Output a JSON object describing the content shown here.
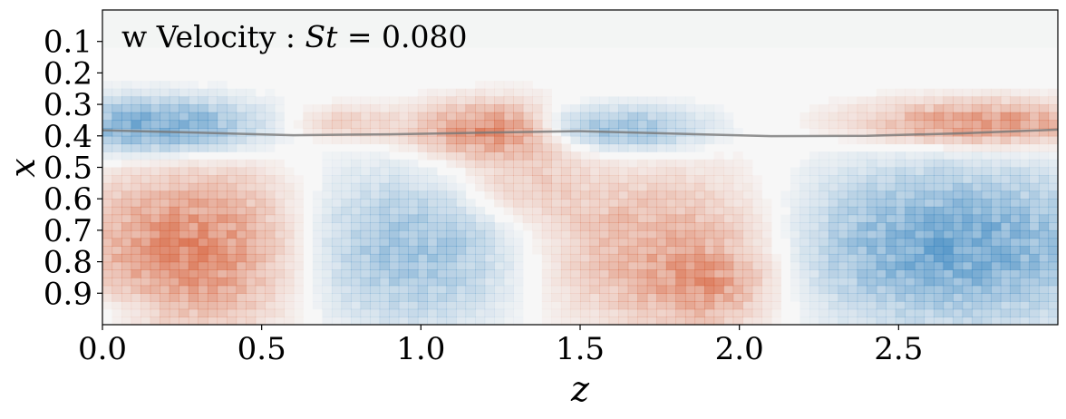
{
  "chart_data": {
    "type": "heatmap",
    "title_prefix": "w Velocity : ",
    "title_math_var": "St",
    "title_equals": " = ",
    "title_value": "0.080",
    "xlabel": "z",
    "ylabel": "x",
    "xlim": [
      0.0,
      3.0
    ],
    "ylim": [
      0.0,
      1.0
    ],
    "y_inverted": true,
    "x_ticks": [
      0.0,
      0.5,
      1.0,
      1.5,
      2.0,
      2.5
    ],
    "x_tick_labels": [
      "0.0",
      "0.5",
      "1.0",
      "1.5",
      "2.0",
      "2.5"
    ],
    "y_ticks": [
      0.1,
      0.2,
      0.3,
      0.4,
      0.5,
      0.6,
      0.7,
      0.8,
      0.9
    ],
    "y_tick_labels": [
      "0.1",
      "0.2",
      "0.3",
      "0.4",
      "0.5",
      "0.6",
      "0.7",
      "0.8",
      "0.9"
    ],
    "colormap": "RdBu_r",
    "colors": {
      "positive": "#d6603a",
      "negative": "#3a86c0",
      "neutral": "#f7f7f7",
      "top_band": "#f3f5f4",
      "interface": "#777777"
    },
    "structures": [
      {
        "sign": -1,
        "z": 0.18,
        "x": 0.37,
        "rz": 0.22,
        "rx": 0.06,
        "amp": 0.8
      },
      {
        "sign": 1,
        "z": 0.75,
        "x": 0.36,
        "rz": 0.12,
        "rx": 0.04,
        "amp": 0.3
      },
      {
        "sign": 1,
        "z": 1.22,
        "x": 0.38,
        "rz": 0.17,
        "rx": 0.06,
        "amp": 0.8
      },
      {
        "sign": -1,
        "z": 1.65,
        "x": 0.38,
        "rz": 0.17,
        "rx": 0.05,
        "amp": 0.55
      },
      {
        "sign": -1,
        "z": 1.45,
        "x": 0.36,
        "rz": 0.1,
        "rx": 0.04,
        "amp": 0.25
      },
      {
        "sign": 1,
        "z": 2.75,
        "x": 0.36,
        "rz": 0.25,
        "rx": 0.05,
        "amp": 0.75
      },
      {
        "sign": 1,
        "z": 0.3,
        "x": 0.76,
        "rz": 0.25,
        "rx": 0.17,
        "amp": 0.85
      },
      {
        "sign": -1,
        "z": 0.95,
        "x": 0.76,
        "rz": 0.3,
        "rx": 0.17,
        "amp": 0.55
      },
      {
        "sign": 1,
        "z": 1.75,
        "x": 0.76,
        "rz": 0.3,
        "rx": 0.17,
        "amp": 0.55
      },
      {
        "sign": 1,
        "z": 1.9,
        "x": 0.88,
        "rz": 0.12,
        "rx": 0.08,
        "amp": 0.4
      },
      {
        "sign": -1,
        "z": 2.65,
        "x": 0.75,
        "rz": 0.35,
        "rx": 0.17,
        "amp": 0.8
      },
      {
        "sign": 1,
        "z": 1.3,
        "x": 0.56,
        "rz": 0.15,
        "rx": 0.08,
        "amp": 0.3
      },
      {
        "sign": -1,
        "z": 0.05,
        "x": 0.95,
        "rz": 0.1,
        "rx": 0.05,
        "amp": 0.2
      }
    ],
    "interface_line": {
      "z": [
        0.0,
        0.3,
        0.6,
        0.9,
        1.2,
        1.5,
        1.8,
        2.1,
        2.4,
        2.7,
        3.0
      ],
      "x": [
        0.382,
        0.39,
        0.398,
        0.395,
        0.39,
        0.385,
        0.393,
        0.401,
        0.4,
        0.392,
        0.38
      ]
    }
  }
}
